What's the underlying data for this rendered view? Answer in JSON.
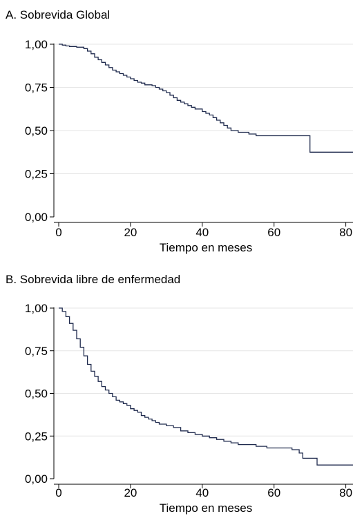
{
  "chart_data": [
    {
      "type": "line",
      "title": "A. Sobrevida Global",
      "xlabel": "Tiempo en meses",
      "ylabel": "",
      "xlim": [
        0,
        82
      ],
      "ylim": [
        0,
        1
      ],
      "xticks": [
        0,
        20,
        40,
        60,
        80
      ],
      "xtick_labels": [
        "0",
        "20",
        "40",
        "60",
        "80"
      ],
      "yticks": [
        0,
        0.25,
        0.5,
        0.75,
        1
      ],
      "ytick_labels": [
        "0,00",
        "0,25",
        "0,50",
        "0,75",
        "1,00"
      ],
      "grid": "horizontal",
      "line_color": "#1f2a4d",
      "series": [
        {
          "step": true,
          "x": [
            0,
            1,
            2,
            3,
            5,
            7,
            8,
            9,
            10,
            11,
            12,
            13,
            14,
            15,
            16,
            17,
            18,
            19,
            20,
            21,
            22,
            23,
            24,
            26,
            27,
            28,
            29,
            30,
            31,
            32,
            33,
            34,
            35,
            36,
            37,
            38,
            40,
            41,
            42,
            43,
            44,
            45,
            46,
            47,
            48,
            50,
            53,
            55,
            70,
            82
          ],
          "y": [
            1.0,
            0.995,
            0.99,
            0.987,
            0.983,
            0.975,
            0.96,
            0.945,
            0.925,
            0.91,
            0.895,
            0.88,
            0.865,
            0.85,
            0.84,
            0.83,
            0.82,
            0.81,
            0.8,
            0.79,
            0.78,
            0.775,
            0.765,
            0.76,
            0.75,
            0.74,
            0.73,
            0.72,
            0.705,
            0.69,
            0.675,
            0.665,
            0.655,
            0.645,
            0.635,
            0.625,
            0.61,
            0.6,
            0.59,
            0.575,
            0.56,
            0.545,
            0.53,
            0.515,
            0.5,
            0.49,
            0.48,
            0.47,
            0.375,
            0.375
          ]
        }
      ]
    },
    {
      "type": "line",
      "title": "B. Sobrevida libre de enfermedad",
      "xlabel": "Tiempo en meses",
      "ylabel": "",
      "xlim": [
        0,
        82
      ],
      "ylim": [
        0,
        1
      ],
      "xticks": [
        0,
        20,
        40,
        60,
        80
      ],
      "xtick_labels": [
        "0",
        "20",
        "40",
        "60",
        "80"
      ],
      "yticks": [
        0,
        0.25,
        0.5,
        0.75,
        1
      ],
      "ytick_labels": [
        "0,00",
        "0,25",
        "0,50",
        "0,75",
        "1,00"
      ],
      "grid": "horizontal",
      "line_color": "#1f2a4d",
      "series": [
        {
          "step": true,
          "x": [
            0,
            1,
            2,
            3,
            4,
            5,
            6,
            7,
            8,
            9,
            10,
            11,
            12,
            13,
            14,
            15,
            16,
            17,
            18,
            19,
            20,
            21,
            22,
            23,
            24,
            25,
            26,
            27,
            28,
            30,
            32,
            34,
            36,
            38,
            40,
            42,
            44,
            46,
            48,
            50,
            52,
            55,
            58,
            60,
            65,
            67,
            68,
            72,
            82
          ],
          "y": [
            1.0,
            0.98,
            0.95,
            0.91,
            0.87,
            0.82,
            0.77,
            0.72,
            0.67,
            0.63,
            0.6,
            0.57,
            0.54,
            0.52,
            0.5,
            0.48,
            0.46,
            0.45,
            0.44,
            0.43,
            0.41,
            0.4,
            0.39,
            0.37,
            0.36,
            0.35,
            0.34,
            0.33,
            0.32,
            0.31,
            0.3,
            0.28,
            0.27,
            0.26,
            0.25,
            0.24,
            0.23,
            0.22,
            0.21,
            0.2,
            0.2,
            0.19,
            0.18,
            0.18,
            0.17,
            0.15,
            0.12,
            0.08,
            0.08
          ]
        }
      ]
    }
  ]
}
